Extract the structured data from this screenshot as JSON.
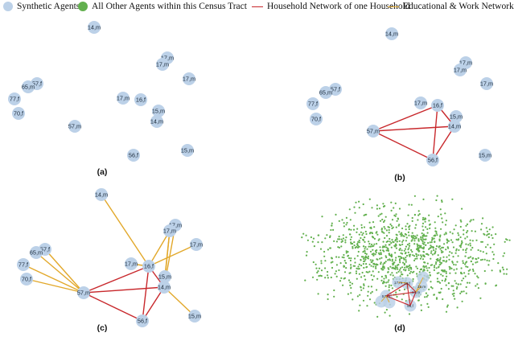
{
  "legend": {
    "synthetic": "Synthetic Agents",
    "other": "All Other Agents within this Census Tract",
    "household": "Household Network of one Household",
    "edu_work": "Educational & Work Networks"
  },
  "colors": {
    "node": "#bcd1e8",
    "other": "#62b04e",
    "household": "#c8282c",
    "edu_work": "#e2a82a"
  },
  "panels": [
    {
      "id": "a",
      "caption": "(a)"
    },
    {
      "id": "b",
      "caption": "(b)"
    },
    {
      "id": "c",
      "caption": "(c)"
    },
    {
      "id": "d",
      "caption": "(d)"
    }
  ],
  "agents": [
    {
      "id": "n1",
      "label": "14,m"
    },
    {
      "id": "n2",
      "label": "17,m"
    },
    {
      "id": "n3",
      "label": "17,m"
    },
    {
      "id": "n4",
      "label": "17,m"
    },
    {
      "id": "n5",
      "label": "57,f"
    },
    {
      "id": "n6",
      "label": "65,m"
    },
    {
      "id": "n7",
      "label": "77,f"
    },
    {
      "id": "n8",
      "label": "70,f"
    },
    {
      "id": "n9",
      "label": "17,m"
    },
    {
      "id": "n10",
      "label": "16,f"
    },
    {
      "id": "n11",
      "label": "15,m"
    },
    {
      "id": "n12",
      "label": "14,m"
    },
    {
      "id": "n13",
      "label": "57,m"
    },
    {
      "id": "n14",
      "label": "56,f"
    },
    {
      "id": "n15",
      "label": "15,m"
    }
  ],
  "household_edges": [
    [
      "n13",
      "n10"
    ],
    [
      "n13",
      "n12"
    ],
    [
      "n13",
      "n14"
    ],
    [
      "n10",
      "n12"
    ],
    [
      "n10",
      "n14"
    ],
    [
      "n12",
      "n14"
    ]
  ],
  "edu_work_edges": [
    [
      "n1",
      "n10"
    ],
    [
      "n2",
      "n12"
    ],
    [
      "n3",
      "n10"
    ],
    [
      "n3",
      "n12"
    ],
    [
      "n3",
      "n11"
    ],
    [
      "n4",
      "n10"
    ],
    [
      "n5",
      "n13"
    ],
    [
      "n6",
      "n13"
    ],
    [
      "n7",
      "n13"
    ],
    [
      "n8",
      "n13"
    ],
    [
      "n9",
      "n10"
    ],
    [
      "n15",
      "n12"
    ]
  ]
}
